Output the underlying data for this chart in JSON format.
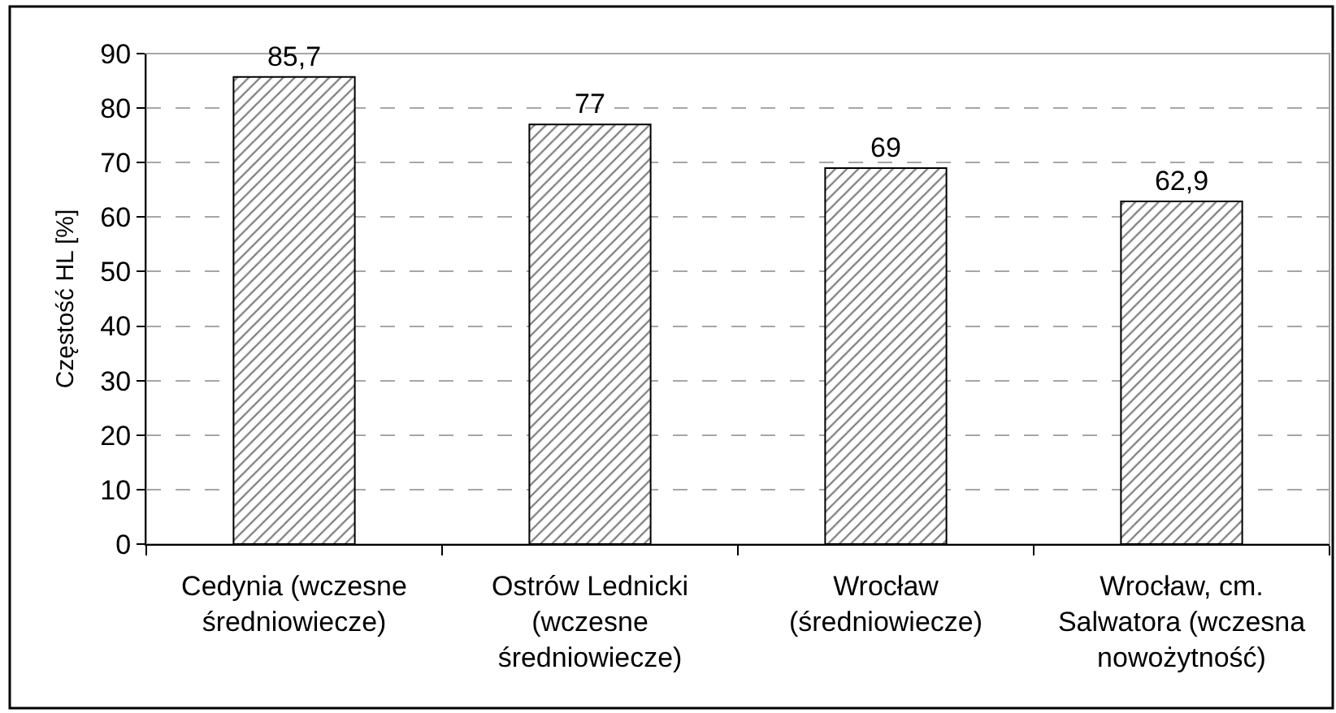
{
  "chart_data": {
    "type": "bar",
    "ylabel": "Częstość HL [%]",
    "categories": [
      "Cedynia (wczesne średniowiecze)",
      "Ostrów Lednicki (wczesne średniowiecze)",
      "Wrocław (średniowiecze)",
      "Wrocław, cm. Salwatora (wczesna nowożytność)"
    ],
    "values": [
      85.7,
      77,
      69,
      62.9
    ],
    "value_labels": [
      "85,7",
      "77",
      "69",
      "62,9"
    ],
    "color": "#000000",
    "ylim": [
      0,
      90
    ],
    "yticks": [
      0,
      10,
      20,
      30,
      40,
      50,
      60,
      70,
      80,
      90
    ],
    "grid": "y"
  }
}
